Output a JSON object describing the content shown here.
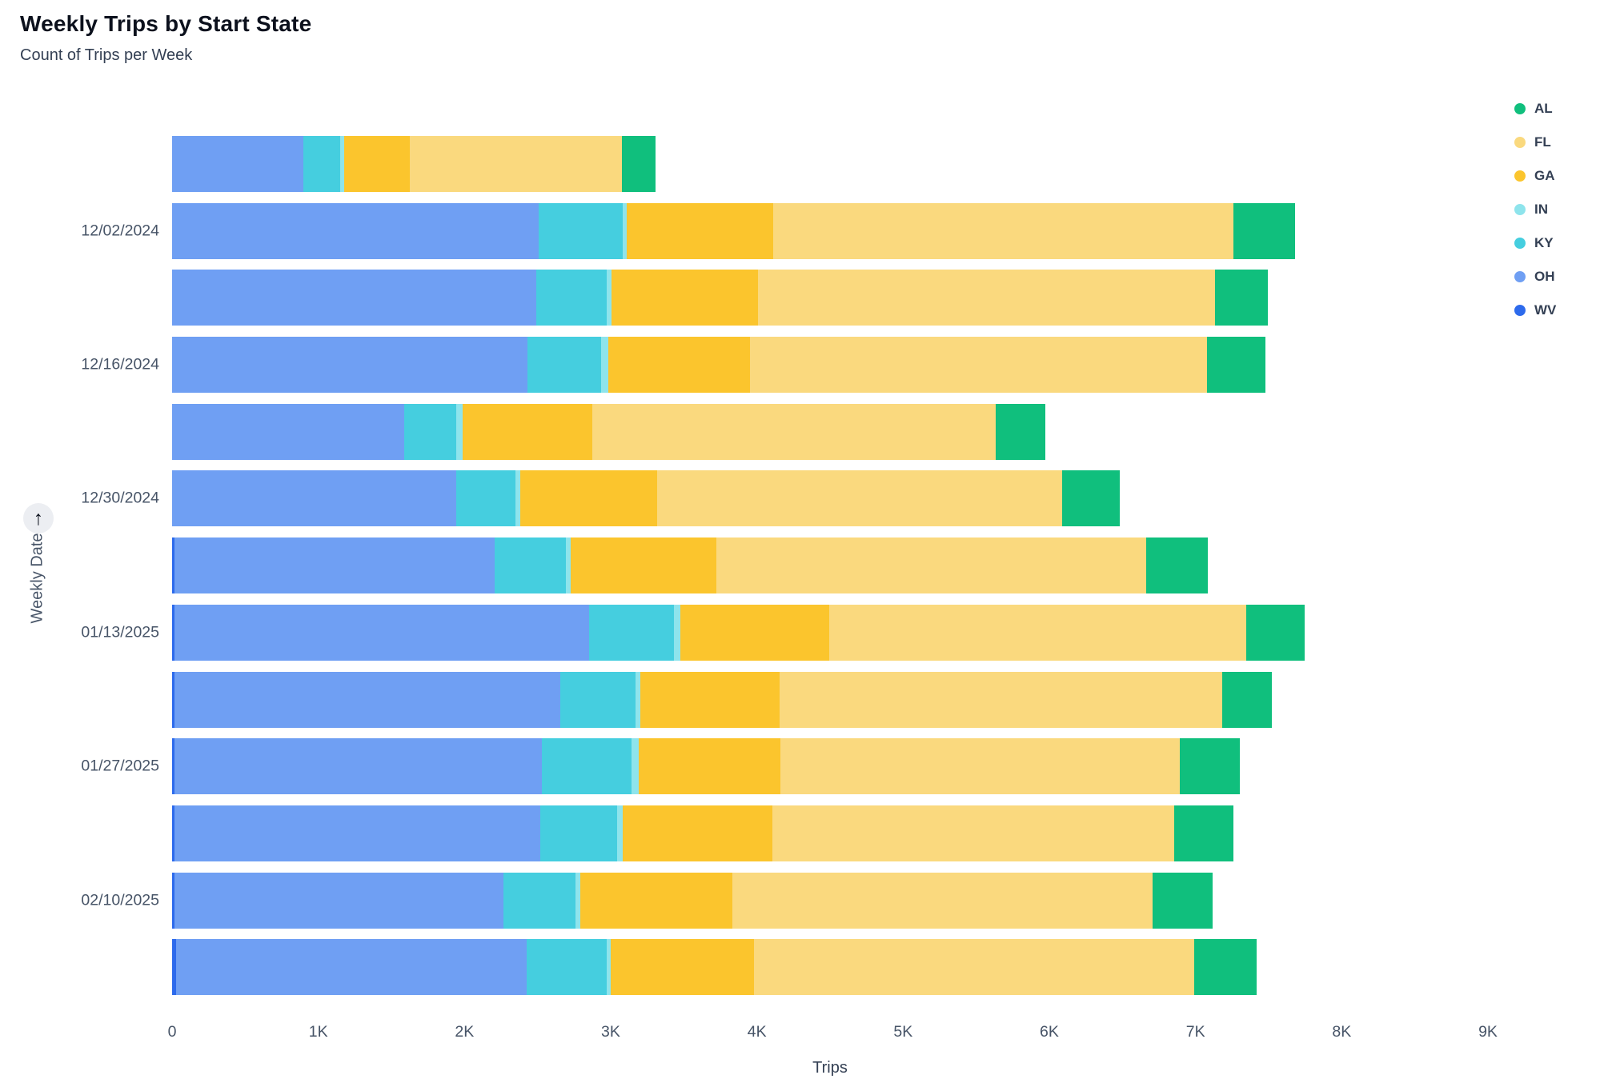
{
  "header": {
    "title": "Weekly Trips by Start State",
    "subtitle": "Count of Trips per Week"
  },
  "y_axis": {
    "label": "Weekly Date",
    "sort_icon": "arrow-up",
    "sort_glyph": "↑"
  },
  "x_axis": {
    "label": "Trips"
  },
  "chart_data": {
    "type": "bar",
    "orientation": "horizontal",
    "stacked": true,
    "title": "Weekly Trips by Start State",
    "subtitle": "Count of Trips per Week",
    "xlabel": "Trips",
    "ylabel": "Weekly Date",
    "xlim": [
      0,
      9000
    ],
    "xtick_values": [
      0,
      1000,
      2000,
      3000,
      4000,
      5000,
      6000,
      7000,
      8000,
      9000
    ],
    "xtick_labels": [
      "0",
      "1K",
      "2K",
      "3K",
      "4K",
      "5K",
      "6K",
      "7K",
      "8K",
      "9K"
    ],
    "grid": false,
    "legend_position": "top-right",
    "categories": [
      "",
      "12/02/2024",
      "",
      "12/16/2024",
      "",
      "12/30/2024",
      "",
      "01/13/2025",
      "",
      "01/27/2025",
      "",
      "02/10/2025",
      ""
    ],
    "stack_order": [
      "WV",
      "OH",
      "KY",
      "IN",
      "GA",
      "FL",
      "AL"
    ],
    "series": [
      {
        "name": "AL",
        "color": "#10BF7D",
        "values": [
          230,
          420,
          360,
          400,
          340,
          390,
          420,
          400,
          340,
          410,
          405,
          410,
          430
        ]
      },
      {
        "name": "FL",
        "color": "#FAD97E",
        "values": [
          1450,
          3150,
          3130,
          3130,
          2760,
          2770,
          2940,
          2850,
          3025,
          2735,
          2750,
          2875,
          3010
        ]
      },
      {
        "name": "GA",
        "color": "#FBC52D",
        "values": [
          450,
          1000,
          1000,
          965,
          890,
          940,
          1000,
          1020,
          950,
          970,
          1025,
          1040,
          980
        ]
      },
      {
        "name": "IN",
        "color": "#8EE4EC",
        "values": [
          25,
          30,
          30,
          50,
          40,
          30,
          30,
          40,
          35,
          45,
          35,
          30,
          30
        ]
      },
      {
        "name": "KY",
        "color": "#45CEDF",
        "values": [
          250,
          575,
          485,
          505,
          360,
          405,
          490,
          585,
          515,
          615,
          525,
          495,
          545
        ]
      },
      {
        "name": "OH",
        "color": "#6F9FF3",
        "values": [
          900,
          2505,
          2490,
          2430,
          1585,
          1945,
          2190,
          2835,
          2640,
          2515,
          2505,
          2250,
          2400
        ]
      },
      {
        "name": "WV",
        "color": "#2D6AEC",
        "values": [
          0,
          0,
          0,
          0,
          0,
          0,
          15,
          15,
          15,
          15,
          15,
          15,
          25
        ]
      }
    ],
    "bar_totals": [
      3305,
      7680,
      7495,
      7480,
      5975,
      6480,
      7085,
      7745,
      7520,
      7305,
      7260,
      7115,
      7420
    ]
  }
}
